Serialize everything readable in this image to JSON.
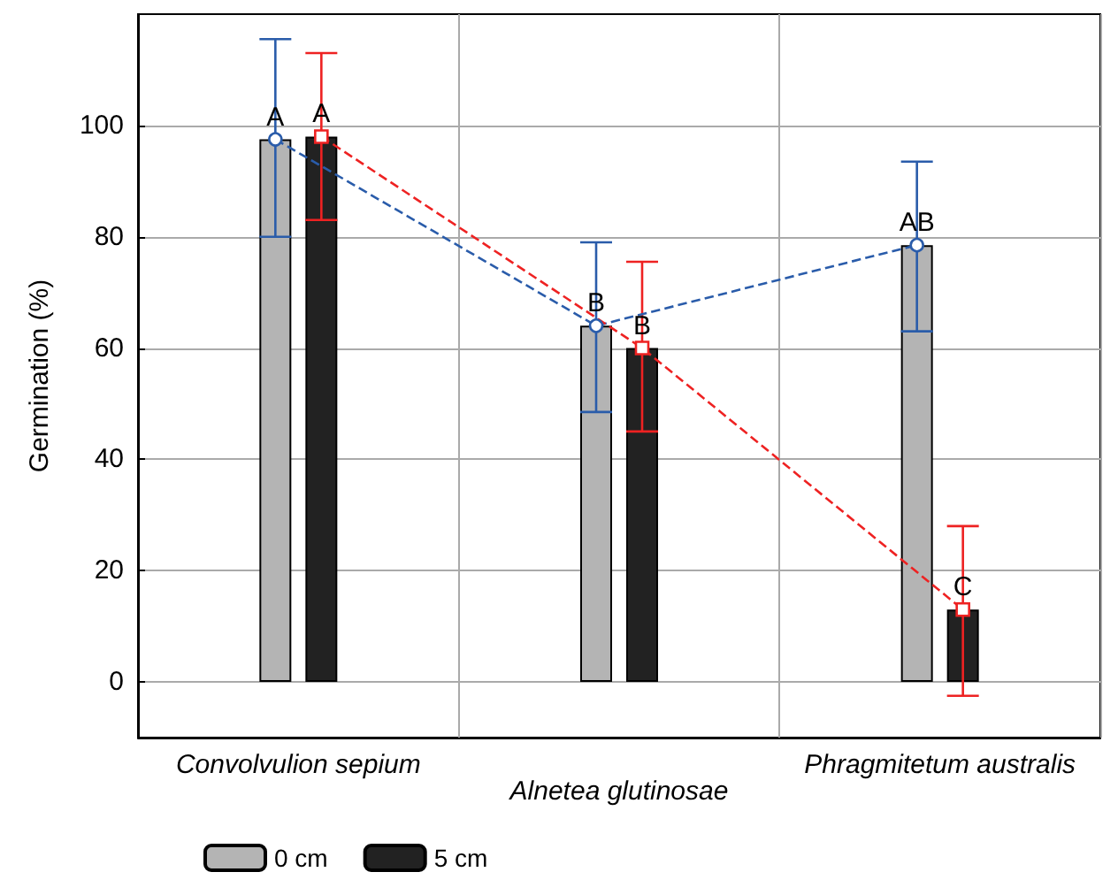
{
  "chart_data": {
    "type": "bar",
    "ylabel": "Germination (%)",
    "categories": [
      "Convolvulion sepium",
      "Alnetea glutinosae",
      "Phragmitetum australis"
    ],
    "series": [
      {
        "name": "0 cm",
        "color": "#b4b4b4",
        "values": [
          97.5,
          64,
          78.5
        ]
      },
      {
        "name": "5 cm",
        "color": "#222222",
        "values": [
          98,
          60,
          13
        ]
      },
      {
        "type": "line",
        "color": "#2a5caa",
        "values": [
          97.5,
          64,
          78.5
        ],
        "errors": [
          [
            80,
            115.5
          ],
          [
            48.5,
            79
          ],
          [
            63,
            93.5
          ]
        ],
        "marker": "circle",
        "line_style": "dashed"
      },
      {
        "type": "line",
        "color": "#ee2222",
        "values": [
          98,
          60,
          13
        ],
        "errors": [
          [
            83,
            113
          ],
          [
            45,
            75.5
          ],
          [
            -2.5,
            28
          ]
        ],
        "marker": "square",
        "line_style": "dashed"
      }
    ],
    "annotations": [
      {
        "text": "A",
        "x": "Convolvulion sepium",
        "y": 97.5
      },
      {
        "text": "A",
        "x": "Convolvulion sepium",
        "y": 98
      },
      {
        "text": "B",
        "x": "Alnetea glutinosae",
        "y": 64
      },
      {
        "text": "B",
        "x": "Alnetea glutinosae",
        "y": 60
      },
      {
        "text": "AB",
        "x": "Phragmitetum australis",
        "y": 78.5
      },
      {
        "text": "C",
        "x": "Phragmitetum australis",
        "y": 13
      }
    ],
    "ylim": [
      -10,
      120
    ],
    "yticks": [
      0,
      20,
      40,
      60,
      80,
      100
    ],
    "grid": true,
    "legend": "bottom left"
  }
}
